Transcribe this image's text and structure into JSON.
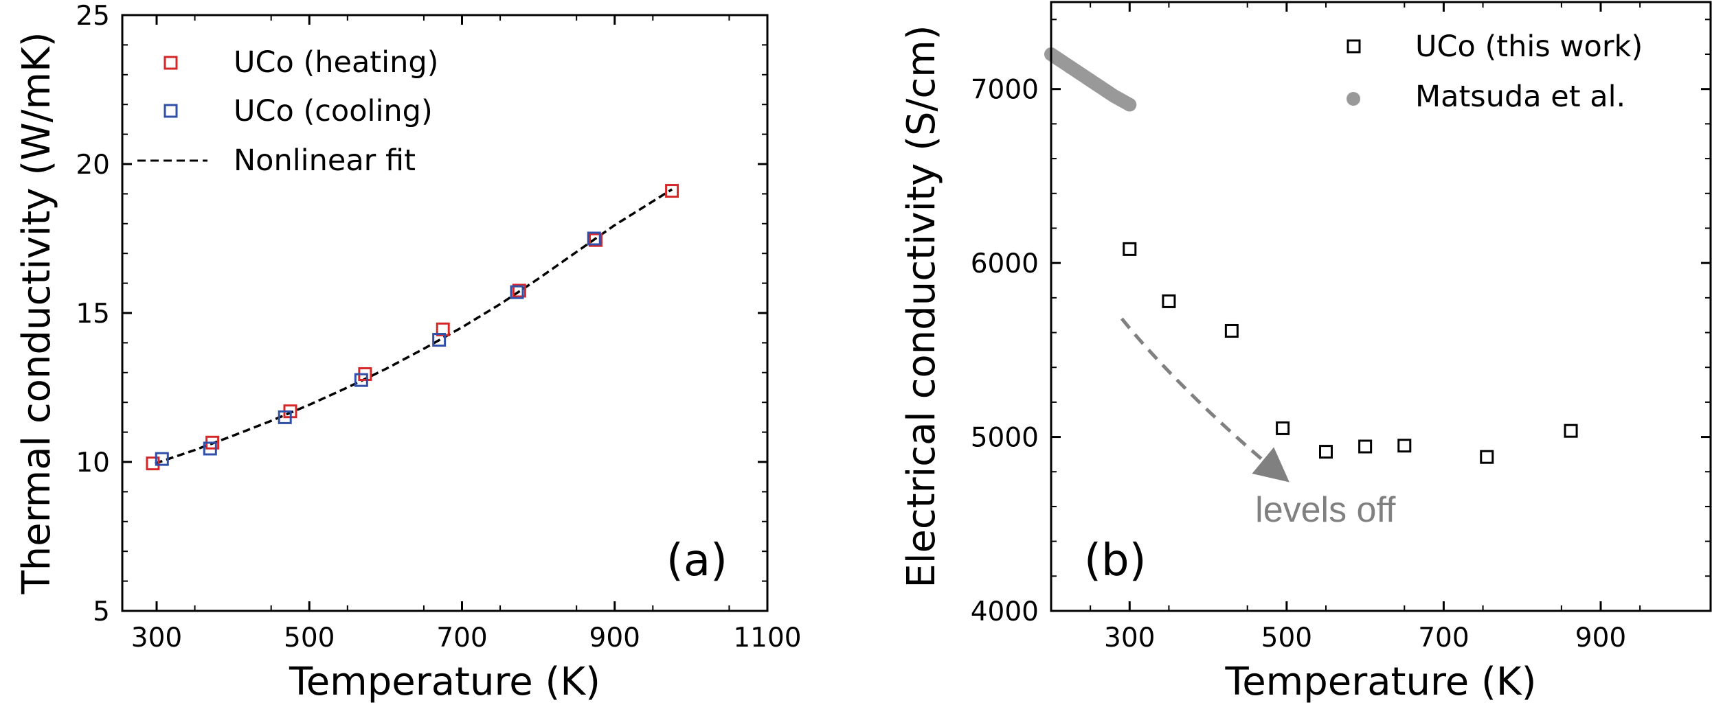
{
  "chart_data": [
    {
      "panel": "(a)",
      "type": "scatter",
      "title": "",
      "xlabel": "Temperature (K)",
      "ylabel": "Thermal conductivity (W/mK)",
      "xlim": [
        255,
        1100
      ],
      "ylim": [
        5,
        25
      ],
      "xticks": [
        300,
        500,
        700,
        900,
        1100
      ],
      "yticks": [
        5,
        10,
        15,
        20,
        25
      ],
      "legend_position": "top-left",
      "series": [
        {
          "name": "UCo (heating)",
          "marker": "open-square",
          "color": "#d62728",
          "points": [
            [
              295,
              9.95
            ],
            [
              373,
              10.65
            ],
            [
              475,
              11.7
            ],
            [
              573,
              12.95
            ],
            [
              675,
              14.45
            ],
            [
              775,
              15.75
            ],
            [
              875,
              17.45
            ],
            [
              975,
              19.1
            ]
          ]
        },
        {
          "name": "UCo (cooling)",
          "marker": "open-square",
          "color": "#2f4fa8",
          "points": [
            [
              307,
              10.1
            ],
            [
              370,
              10.45
            ],
            [
              468,
              11.5
            ],
            [
              568,
              12.75
            ],
            [
              670,
              14.1
            ],
            [
              772,
              15.7
            ],
            [
              873,
              17.5
            ]
          ]
        },
        {
          "name": "Nonlinear fit",
          "style": "dashed-line",
          "color": "#000000",
          "points": [
            [
              298,
              9.95
            ],
            [
              350,
              10.4
            ],
            [
              400,
              10.88
            ],
            [
              450,
              11.38
            ],
            [
              500,
              11.92
            ],
            [
              550,
              12.5
            ],
            [
              600,
              13.12
            ],
            [
              650,
              13.8
            ],
            [
              700,
              14.52
            ],
            [
              750,
              15.3
            ],
            [
              800,
              16.15
            ],
            [
              850,
              17.05
            ],
            [
              900,
              17.95
            ],
            [
              950,
              18.75
            ],
            [
              975,
              19.15
            ]
          ]
        }
      ]
    },
    {
      "panel": "(b)",
      "type": "scatter",
      "title": "",
      "xlabel": "Temperature (K)",
      "ylabel": "Electrical conductivity (S/cm)",
      "xlim": [
        200,
        1040
      ],
      "ylim": [
        4000,
        7500
      ],
      "xticks": [
        300,
        500,
        700,
        900
      ],
      "yticks": [
        4000,
        5000,
        6000,
        7000
      ],
      "legend_position": "top-right",
      "series": [
        {
          "name": "UCo (this work)",
          "marker": "open-square",
          "color": "#000000",
          "points": [
            [
              300,
              6080
            ],
            [
              350,
              5780
            ],
            [
              430,
              5610
            ],
            [
              495,
              5050
            ],
            [
              550,
              4915
            ],
            [
              600,
              4945
            ],
            [
              650,
              4950
            ],
            [
              755,
              4885
            ],
            [
              862,
              5035
            ]
          ]
        },
        {
          "name": "Matsuda et al.",
          "marker": "filled-circle",
          "color": "#999999",
          "points": [
            [
              200,
              7200
            ],
            [
              210,
              7170
            ],
            [
              220,
              7140
            ],
            [
              230,
              7110
            ],
            [
              240,
              7080
            ],
            [
              250,
              7050
            ],
            [
              260,
              7020
            ],
            [
              270,
              6990
            ],
            [
              280,
              6960
            ],
            [
              290,
              6935
            ],
            [
              300,
              6910
            ]
          ]
        }
      ],
      "annotation": {
        "text": "levels off",
        "color": "#808080",
        "arrow_path": [
          [
            290,
            5680
          ],
          [
            340,
            5400
          ],
          [
            420,
            5050
          ],
          [
            490,
            4790
          ]
        ]
      }
    }
  ]
}
